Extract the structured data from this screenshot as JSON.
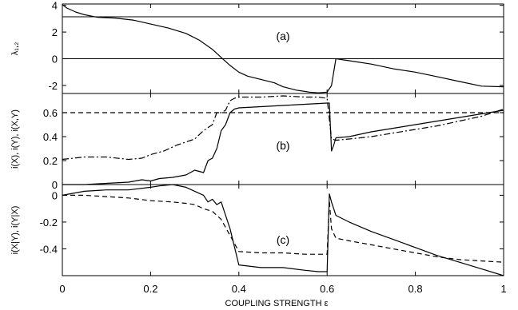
{
  "chart_data": [
    {
      "type": "line",
      "panel_label": "(a)",
      "ylabel": "λ₁,₂",
      "xlim": [
        0,
        1
      ],
      "ylim": [
        -2.6,
        4.1
      ],
      "yticks": [
        "4",
        "2",
        "0",
        "-2"
      ],
      "ytick_values": [
        4,
        2,
        0,
        -2
      ],
      "hlines": [
        3.14,
        0
      ],
      "series": [
        {
          "style": "solid",
          "x": [
            0,
            0.01,
            0.03,
            0.05,
            0.08,
            0.12,
            0.16,
            0.2,
            0.24,
            0.28,
            0.31,
            0.34,
            0.36,
            0.38,
            0.4,
            0.42,
            0.45,
            0.48,
            0.5,
            0.53,
            0.56,
            0.58,
            0.6,
            0.61,
            0.62,
            0.65,
            0.7,
            0.75,
            0.8,
            0.85,
            0.9,
            0.95,
            1.0
          ],
          "y": [
            4.05,
            3.8,
            3.5,
            3.3,
            3.1,
            3.05,
            2.9,
            2.6,
            2.3,
            1.9,
            1.4,
            0.7,
            0.1,
            -0.5,
            -1.0,
            -1.3,
            -1.55,
            -1.8,
            -2.1,
            -2.35,
            -2.5,
            -2.55,
            -2.5,
            -2.0,
            0.0,
            -0.15,
            -0.4,
            -0.75,
            -1.0,
            -1.35,
            -1.7,
            -2.05,
            -2.1
          ]
        }
      ]
    },
    {
      "type": "line",
      "panel_label": "(b)",
      "ylabel": "i(X), i(Y), i(X,Y)",
      "xlim": [
        0,
        1
      ],
      "ylim": [
        0,
        0.76
      ],
      "yticks": [
        "0.6",
        "0.4",
        "0.2",
        "0"
      ],
      "ytick_values": [
        0.6,
        0.4,
        0.2,
        0
      ],
      "series": [
        {
          "style": "solid",
          "x": [
            0,
            0.05,
            0.1,
            0.15,
            0.18,
            0.2,
            0.22,
            0.25,
            0.28,
            0.3,
            0.32,
            0.33,
            0.34,
            0.35,
            0.36,
            0.37,
            0.38,
            0.39,
            0.4,
            0.45,
            0.5,
            0.55,
            0.6,
            0.605,
            0.61,
            0.615,
            0.62,
            0.65,
            0.7,
            0.75,
            0.8,
            0.85,
            0.9,
            0.95,
            1.0
          ],
          "y": [
            0.0,
            0.0,
            0.01,
            0.02,
            0.04,
            0.03,
            0.05,
            0.06,
            0.08,
            0.12,
            0.1,
            0.2,
            0.22,
            0.3,
            0.45,
            0.5,
            0.6,
            0.63,
            0.64,
            0.65,
            0.66,
            0.67,
            0.68,
            0.68,
            0.28,
            0.33,
            0.39,
            0.4,
            0.44,
            0.47,
            0.5,
            0.53,
            0.56,
            0.59,
            0.62
          ]
        },
        {
          "style": "dashdot",
          "x": [
            0,
            0.05,
            0.1,
            0.15,
            0.18,
            0.2,
            0.23,
            0.26,
            0.3,
            0.32,
            0.34,
            0.35,
            0.36,
            0.37,
            0.38,
            0.39,
            0.4,
            0.45,
            0.5,
            0.55,
            0.58,
            0.6,
            0.61,
            0.62,
            0.65,
            0.7,
            0.75,
            0.8,
            0.85,
            0.9,
            0.95,
            1.0
          ],
          "y": [
            0.21,
            0.23,
            0.23,
            0.21,
            0.22,
            0.25,
            0.28,
            0.33,
            0.38,
            0.45,
            0.5,
            0.6,
            0.6,
            0.62,
            0.7,
            0.72,
            0.73,
            0.73,
            0.74,
            0.73,
            0.73,
            0.72,
            0.38,
            0.37,
            0.38,
            0.4,
            0.43,
            0.46,
            0.49,
            0.53,
            0.57,
            0.63
          ]
        },
        {
          "style": "dashed",
          "x": [
            0,
            1
          ],
          "y": [
            0.6,
            0.6
          ]
        }
      ]
    },
    {
      "type": "line",
      "panel_label": "(c)",
      "ylabel": "i(X|Y), i(Y|X)",
      "xlim": [
        0,
        1
      ],
      "ylim": [
        -0.6,
        0.08
      ],
      "yticks": [
        "0",
        "-0.2",
        "-0.4"
      ],
      "ytick_values": [
        0,
        -0.2,
        -0.4
      ],
      "series": [
        {
          "style": "solid",
          "x": [
            0,
            0.05,
            0.1,
            0.15,
            0.2,
            0.22,
            0.25,
            0.28,
            0.3,
            0.32,
            0.33,
            0.34,
            0.35,
            0.36,
            0.37,
            0.38,
            0.4,
            0.45,
            0.5,
            0.55,
            0.58,
            0.6,
            0.605,
            0.61,
            0.62,
            0.65,
            0.7,
            0.75,
            0.8,
            0.85,
            0.9,
            0.95,
            1.0
          ],
          "y": [
            0.0,
            0.03,
            0.04,
            0.04,
            0.06,
            0.07,
            0.08,
            0.06,
            0.03,
            0.0,
            -0.05,
            -0.03,
            -0.07,
            -0.05,
            -0.15,
            -0.25,
            -0.52,
            -0.54,
            -0.54,
            -0.56,
            -0.57,
            -0.57,
            0.01,
            -0.05,
            -0.15,
            -0.2,
            -0.27,
            -0.33,
            -0.39,
            -0.45,
            -0.5,
            -0.55,
            -0.6
          ]
        },
        {
          "style": "dashed",
          "x": [
            0,
            0.05,
            0.1,
            0.15,
            0.2,
            0.25,
            0.28,
            0.3,
            0.32,
            0.34,
            0.36,
            0.38,
            0.4,
            0.45,
            0.5,
            0.55,
            0.6,
            0.605,
            0.61,
            0.62,
            0.65,
            0.7,
            0.75,
            0.8,
            0.85,
            0.9,
            0.95,
            1.0
          ],
          "y": [
            0.0,
            0.0,
            -0.01,
            -0.02,
            -0.04,
            -0.05,
            -0.06,
            -0.07,
            -0.1,
            -0.12,
            -0.18,
            -0.3,
            -0.42,
            -0.43,
            -0.43,
            -0.44,
            -0.44,
            -0.04,
            -0.25,
            -0.32,
            -0.34,
            -0.37,
            -0.4,
            -0.43,
            -0.46,
            -0.48,
            -0.49,
            -0.5
          ]
        }
      ]
    }
  ],
  "xaxis": {
    "label": "COUPLING STRENGTH ε",
    "xlim": [
      0,
      1
    ],
    "ticks": [
      "0",
      "0.2",
      "0.4",
      "0.6",
      "0.8",
      "1"
    ],
    "tick_values": [
      0,
      0.2,
      0.4,
      0.6,
      0.8,
      1
    ]
  }
}
